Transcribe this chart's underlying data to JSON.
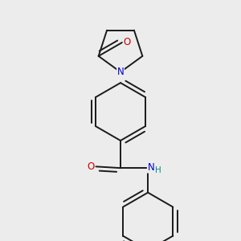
{
  "bg_color": "#ececec",
  "bond_color": "#1a1a1a",
  "bond_width": 1.4,
  "atom_colors": {
    "N": "#0000cc",
    "O": "#cc0000",
    "Cl": "#008800",
    "NH_H": "#008888",
    "C": "#1a1a1a"
  },
  "font_size": 8.5,
  "font_size_h": 7.5
}
